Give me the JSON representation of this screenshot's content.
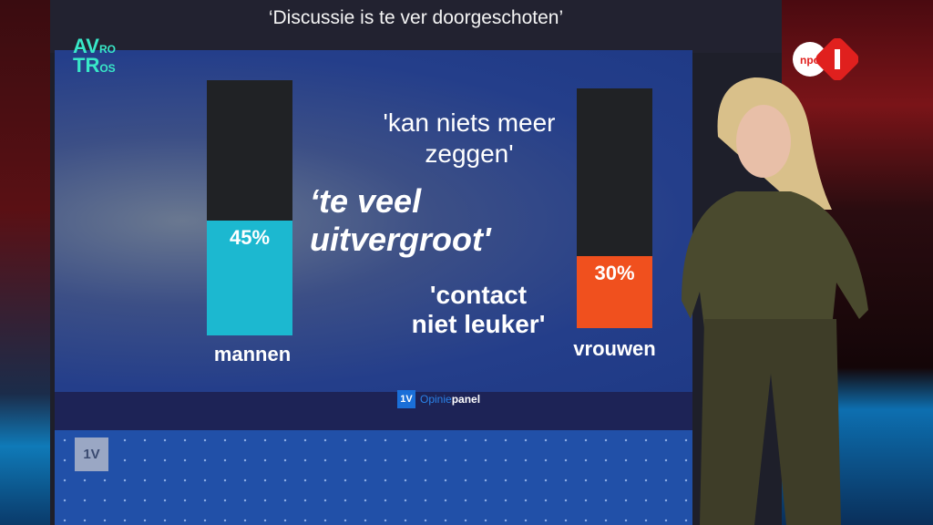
{
  "title": "‘Discussie is te ver doorgeschoten’",
  "broadcaster_logo": "AVROTROS",
  "channel_logo": "NPO 1",
  "quotes": [
    "'kan niets meer zeggen'",
    "‘te veel uitvergroot'",
    "'contact niet leuker'"
  ],
  "footer": {
    "badge": "1V",
    "brand_a": "Opinie",
    "brand_b": "panel"
  },
  "corner_badge": "1V",
  "chart_data": {
    "type": "bar",
    "categories": [
      "mannen",
      "vrouwen"
    ],
    "values": [
      45,
      30
    ],
    "value_labels": [
      "45%",
      "30%"
    ],
    "ylim": [
      0,
      100
    ],
    "colors": [
      "#1cb8d0",
      "#f0501e"
    ],
    "title": "‘Discussie is te ver doorgeschoten’"
  }
}
